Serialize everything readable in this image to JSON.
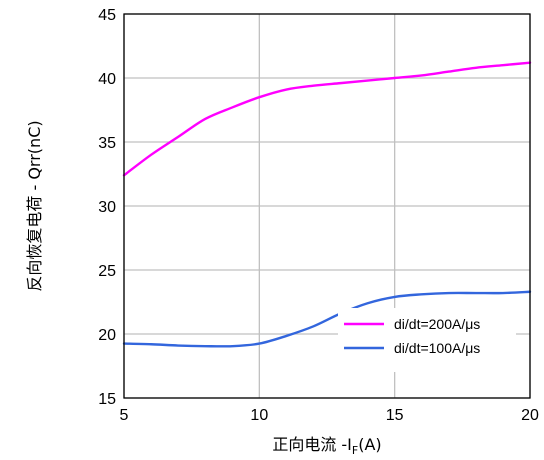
{
  "chart_data": {
    "type": "line",
    "title": "",
    "xlabel": "正向电流 -I",
    "xlabel_sub": "F",
    "xlabel_tail": "(A)",
    "ylabel": "反向恢复电荷 - Qrr(nC)",
    "xlim": [
      5,
      20
    ],
    "ylim": [
      15,
      45
    ],
    "xticks": [
      5,
      10,
      15,
      20
    ],
    "yticks": [
      15,
      20,
      25,
      30,
      35,
      40,
      45
    ],
    "grid": true,
    "legend_position": "bottom-right",
    "series": [
      {
        "name": "di/dt=200A/μs",
        "color": "#ff00ff",
        "x": [
          5,
          6,
          7,
          8,
          9,
          10,
          11,
          12,
          13,
          14,
          15,
          16,
          17,
          18,
          19,
          20
        ],
        "y": [
          32.4,
          34.0,
          35.4,
          36.8,
          37.7,
          38.5,
          39.1,
          39.4,
          39.6,
          39.8,
          40.0,
          40.2,
          40.5,
          40.8,
          41.0,
          41.2
        ]
      },
      {
        "name": "di/dt=100A/μs",
        "color": "#3366dd",
        "x": [
          5,
          6,
          7,
          8,
          9,
          10,
          11,
          12,
          13,
          14,
          15,
          16,
          17,
          18,
          19,
          20
        ],
        "y": [
          19.25,
          19.2,
          19.1,
          19.05,
          19.05,
          19.25,
          19.85,
          20.6,
          21.6,
          22.4,
          22.9,
          23.1,
          23.2,
          23.2,
          23.2,
          23.3
        ]
      }
    ]
  }
}
